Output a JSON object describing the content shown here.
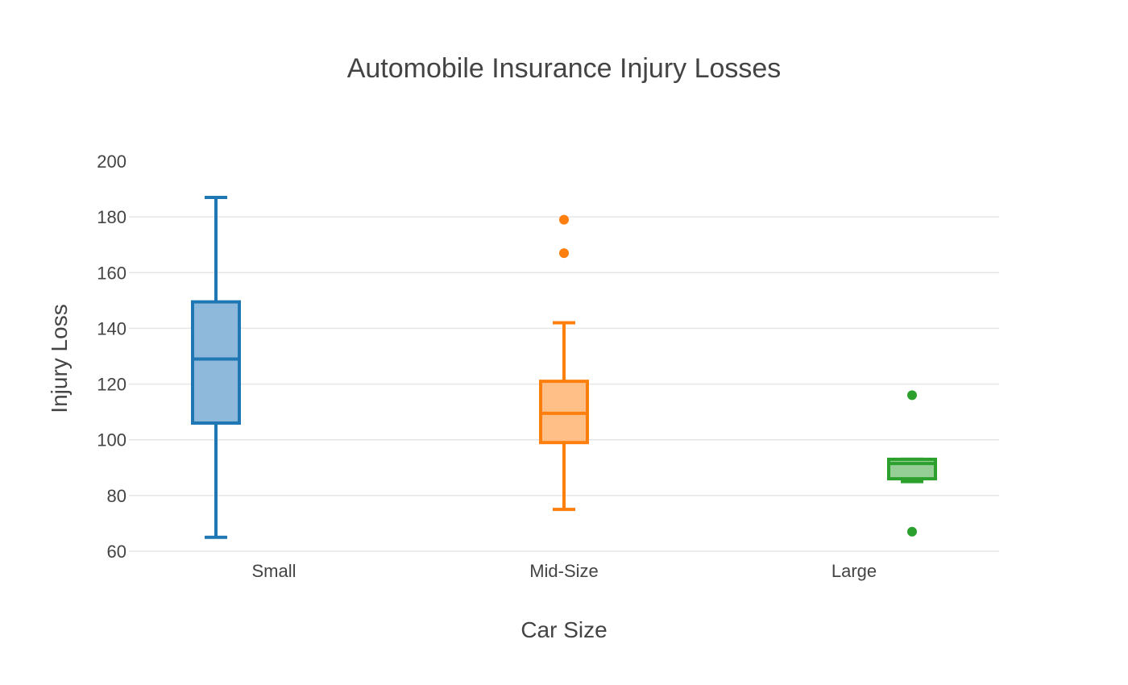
{
  "chart_data": {
    "type": "box",
    "title": "Automobile Insurance Injury Losses",
    "xlabel": "Car Size",
    "ylabel": "Injury Loss",
    "ylim": [
      60,
      200
    ],
    "yticks": [
      60,
      80,
      100,
      120,
      140,
      160,
      180,
      200
    ],
    "grid": true,
    "legend": "none",
    "categories": [
      "Small",
      "Mid-Size",
      "Large"
    ],
    "series": [
      {
        "category": "Small",
        "color": "#1f77b4",
        "fill": "#8fb9da",
        "min": 65,
        "q1": 106,
        "median": 129,
        "q3": 149.5,
        "max": 187,
        "outliers": []
      },
      {
        "category": "Mid-Size",
        "color": "#ff7f0e",
        "fill": "#ffbf87",
        "min": 75,
        "q1": 99,
        "median": 109.5,
        "q3": 121,
        "max": 142,
        "outliers": [
          167,
          179
        ]
      },
      {
        "category": "Large",
        "color": "#2ca02c",
        "fill": "#96cf96",
        "min": 85,
        "q1": 86,
        "median": 91.5,
        "q3": 93,
        "max": 93,
        "outliers": [
          67,
          116
        ]
      }
    ]
  }
}
